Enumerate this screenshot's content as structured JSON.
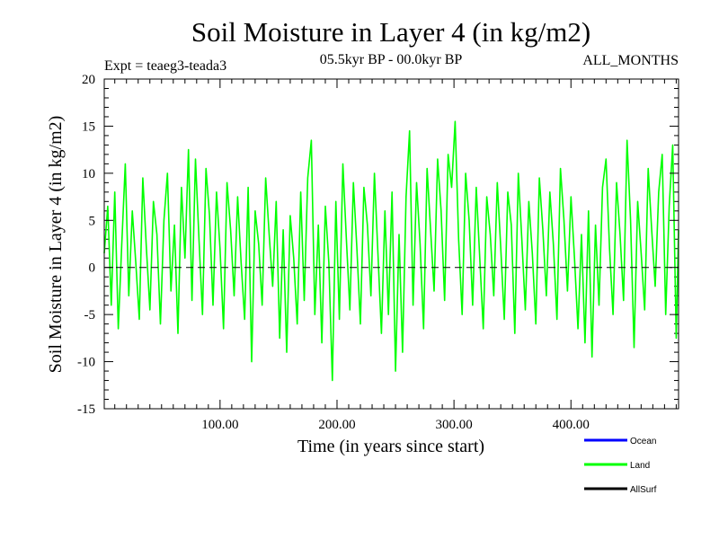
{
  "chart_data": {
    "type": "line",
    "title": "Soil Moisture in Layer 4 (in kg/m2)",
    "subtitle_left": "Expt = teaeg3-teada3",
    "subtitle_center": "05.5kyr BP - 00.0kyr BP",
    "subtitle_right": "ALL_MONTHS",
    "xlabel": "Time (in years since start)",
    "ylabel": "Soil Moisture in Layer 4 (in kg/m2)",
    "xlim": [
      1,
      492
    ],
    "ylim": [
      -15,
      20
    ],
    "x_ticks": [
      {
        "value": 100,
        "label": "100.00"
      },
      {
        "value": 200,
        "label": "200.00"
      },
      {
        "value": 300,
        "label": "300.00"
      },
      {
        "value": 400,
        "label": "400.00"
      }
    ],
    "y_ticks": [
      {
        "value": -15,
        "label": "-15"
      },
      {
        "value": -10,
        "label": "-10"
      },
      {
        "value": -5,
        "label": "-5"
      },
      {
        "value": 0,
        "label": "0"
      },
      {
        "value": 5,
        "label": "5"
      },
      {
        "value": 10,
        "label": "10"
      },
      {
        "value": 15,
        "label": "15"
      },
      {
        "value": 20,
        "label": "20"
      }
    ],
    "zero_line": true,
    "legend_position": "bottom-right",
    "series": [
      {
        "name": "Ocean",
        "color": "#0000ff",
        "points": []
      },
      {
        "name": "Land",
        "color": "#00ff00",
        "points": [
          [
            1,
            1.5
          ],
          [
            4,
            6.5
          ],
          [
            7,
            -4.0
          ],
          [
            10,
            8.0
          ],
          [
            13,
            -6.5
          ],
          [
            16,
            2.5
          ],
          [
            19,
            11.0
          ],
          [
            22,
            -3.0
          ],
          [
            25,
            6.0
          ],
          [
            28,
            0.5
          ],
          [
            31,
            -5.5
          ],
          [
            34,
            9.5
          ],
          [
            37,
            2.0
          ],
          [
            40,
            -4.5
          ],
          [
            43,
            7.0
          ],
          [
            46,
            3.5
          ],
          [
            49,
            -6.0
          ],
          [
            52,
            5.0
          ],
          [
            55,
            10.0
          ],
          [
            58,
            -2.5
          ],
          [
            61,
            4.5
          ],
          [
            64,
            -7.0
          ],
          [
            67,
            8.5
          ],
          [
            70,
            1.0
          ],
          [
            73,
            12.5
          ],
          [
            76,
            -3.5
          ],
          [
            79,
            11.5
          ],
          [
            82,
            3.0
          ],
          [
            85,
            -5.0
          ],
          [
            88,
            10.5
          ],
          [
            91,
            5.5
          ],
          [
            94,
            -4.0
          ],
          [
            97,
            8.0
          ],
          [
            100,
            2.0
          ],
          [
            103,
            -6.5
          ],
          [
            106,
            9.0
          ],
          [
            109,
            4.0
          ],
          [
            112,
            -3.0
          ],
          [
            115,
            7.5
          ],
          [
            118,
            0.5
          ],
          [
            121,
            -5.5
          ],
          [
            124,
            8.5
          ],
          [
            127,
            -10.0
          ],
          [
            130,
            6.0
          ],
          [
            133,
            2.5
          ],
          [
            136,
            -4.0
          ],
          [
            139,
            9.5
          ],
          [
            142,
            3.5
          ],
          [
            145,
            -2.0
          ],
          [
            148,
            7.0
          ],
          [
            151,
            -7.5
          ],
          [
            154,
            4.0
          ],
          [
            157,
            -9.0
          ],
          [
            160,
            5.5
          ],
          [
            163,
            1.0
          ],
          [
            166,
            -6.0
          ],
          [
            169,
            8.0
          ],
          [
            172,
            -3.5
          ],
          [
            175,
            9.5
          ],
          [
            178,
            13.5
          ],
          [
            181,
            -5.0
          ],
          [
            184,
            4.5
          ],
          [
            187,
            -8.0
          ],
          [
            190,
            6.5
          ],
          [
            193,
            0.5
          ],
          [
            196,
            -12.0
          ],
          [
            199,
            7.0
          ],
          [
            202,
            -5.5
          ],
          [
            205,
            11.0
          ],
          [
            208,
            3.0
          ],
          [
            211,
            -4.5
          ],
          [
            214,
            9.0
          ],
          [
            217,
            2.0
          ],
          [
            220,
            -6.0
          ],
          [
            223,
            8.5
          ],
          [
            226,
            4.5
          ],
          [
            229,
            -3.0
          ],
          [
            232,
            10.0
          ],
          [
            235,
            1.5
          ],
          [
            238,
            -7.0
          ],
          [
            241,
            6.0
          ],
          [
            244,
            -5.0
          ],
          [
            247,
            8.0
          ],
          [
            250,
            -11.0
          ],
          [
            253,
            3.5
          ],
          [
            256,
            -9.0
          ],
          [
            259,
            7.5
          ],
          [
            262,
            14.5
          ],
          [
            265,
            -4.0
          ],
          [
            268,
            9.0
          ],
          [
            271,
            2.5
          ],
          [
            274,
            -6.5
          ],
          [
            277,
            10.5
          ],
          [
            280,
            4.0
          ],
          [
            283,
            -2.5
          ],
          [
            286,
            11.5
          ],
          [
            289,
            6.0
          ],
          [
            292,
            -3.5
          ],
          [
            295,
            12.0
          ],
          [
            298,
            8.5
          ],
          [
            301,
            15.5
          ],
          [
            304,
            3.0
          ],
          [
            307,
            -5.0
          ],
          [
            310,
            10.0
          ],
          [
            313,
            5.0
          ],
          [
            316,
            -4.0
          ],
          [
            319,
            8.5
          ],
          [
            322,
            1.0
          ],
          [
            325,
            -6.5
          ],
          [
            328,
            7.5
          ],
          [
            331,
            3.5
          ],
          [
            334,
            -3.0
          ],
          [
            337,
            9.0
          ],
          [
            340,
            2.0
          ],
          [
            343,
            -5.5
          ],
          [
            346,
            8.0
          ],
          [
            349,
            4.5
          ],
          [
            352,
            -7.0
          ],
          [
            355,
            10.0
          ],
          [
            358,
            3.0
          ],
          [
            361,
            -4.5
          ],
          [
            364,
            7.0
          ],
          [
            367,
            1.5
          ],
          [
            370,
            -6.0
          ],
          [
            373,
            9.5
          ],
          [
            376,
            4.0
          ],
          [
            379,
            -3.0
          ],
          [
            382,
            8.0
          ],
          [
            385,
            2.5
          ],
          [
            388,
            -5.5
          ],
          [
            391,
            10.5
          ],
          [
            394,
            5.0
          ],
          [
            397,
            -2.5
          ],
          [
            400,
            7.5
          ],
          [
            403,
            1.0
          ],
          [
            406,
            -6.5
          ],
          [
            409,
            3.5
          ],
          [
            412,
            -8.0
          ],
          [
            415,
            6.0
          ],
          [
            418,
            -9.5
          ],
          [
            421,
            4.5
          ],
          [
            424,
            -4.0
          ],
          [
            427,
            8.5
          ],
          [
            430,
            11.5
          ],
          [
            433,
            2.0
          ],
          [
            436,
            -5.0
          ],
          [
            439,
            9.0
          ],
          [
            442,
            3.5
          ],
          [
            445,
            -3.5
          ],
          [
            448,
            13.5
          ],
          [
            451,
            5.0
          ],
          [
            454,
            -8.5
          ],
          [
            457,
            7.0
          ],
          [
            460,
            1.5
          ],
          [
            463,
            -4.5
          ],
          [
            466,
            10.5
          ],
          [
            469,
            4.0
          ],
          [
            472,
            -2.0
          ],
          [
            475,
            8.0
          ],
          [
            478,
            12.0
          ],
          [
            481,
            -5.0
          ],
          [
            484,
            6.5
          ],
          [
            487,
            13.0
          ],
          [
            490,
            -7.5
          ],
          [
            492,
            4.0
          ]
        ]
      },
      {
        "name": "AllSurf",
        "color": "#000000",
        "points": []
      }
    ]
  }
}
